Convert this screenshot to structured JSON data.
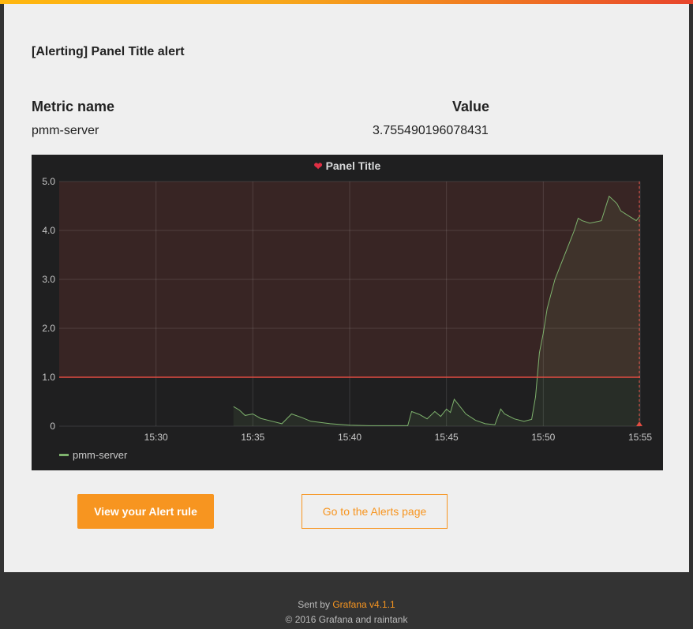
{
  "email": {
    "title": "[Alerting] Panel Title alert",
    "table": {
      "headers": [
        "Metric name",
        "Value"
      ],
      "rows": [
        {
          "metric": "pmm-server",
          "value": "3.755490196078431"
        }
      ]
    }
  },
  "panel": {
    "title": "Panel Title",
    "icon": "broken-heart-icon",
    "legend": "pmm-server"
  },
  "chart_data": {
    "type": "line",
    "title": "Panel Title",
    "x": [
      "15:26",
      "15:30",
      "15:34",
      "15:34.3",
      "15:34.6",
      "15:35",
      "15:35.4",
      "15:36",
      "15:36.5",
      "15:37",
      "15:37.5",
      "15:38",
      "15:39",
      "15:40",
      "15:41",
      "15:42",
      "15:43",
      "15:43.2",
      "15:43.6",
      "15:44",
      "15:44.4",
      "15:44.7",
      "15:45",
      "15:45.2",
      "15:45.4",
      "15:45.6",
      "15:46",
      "15:46.5",
      "15:47",
      "15:47.5",
      "15:47.8",
      "15:48",
      "15:48.5",
      "15:49",
      "15:49.4",
      "15:49.6",
      "15:49.8",
      "15:50",
      "15:50.2",
      "15:50.4",
      "15:50.6",
      "15:50.8",
      "15:51",
      "15:51.2",
      "15:51.4",
      "15:51.6",
      "15:51.8",
      "15:52",
      "15:52.4",
      "15:52.8",
      "15:53",
      "15:53.4",
      "15:53.8",
      "15:54",
      "15:54.4",
      "15:54.8",
      "15:55"
    ],
    "xlabels": [
      "15:30",
      "15:35",
      "15:40",
      "15:45",
      "15:50",
      "15:55"
    ],
    "xlim": [
      "15:25",
      "15:55"
    ],
    "series": [
      {
        "name": "pmm-server",
        "color": "#7eb26d",
        "values": [
          null,
          null,
          0.4,
          0.33,
          0.22,
          0.25,
          0.16,
          0.1,
          0.05,
          0.25,
          0.18,
          0.1,
          0.05,
          0.02,
          0.01,
          0.01,
          0.01,
          0.3,
          0.24,
          0.15,
          0.3,
          0.2,
          0.35,
          0.28,
          0.55,
          0.45,
          0.25,
          0.12,
          0.05,
          0.03,
          0.35,
          0.25,
          0.15,
          0.1,
          0.14,
          0.6,
          1.5,
          1.9,
          2.4,
          2.7,
          3.0,
          3.2,
          3.4,
          3.6,
          3.8,
          4.0,
          4.25,
          4.2,
          4.15,
          4.18,
          4.2,
          4.7,
          4.55,
          4.4,
          4.3,
          4.2,
          4.3
        ]
      }
    ],
    "threshold": 1.0,
    "threshold_color": "#e24d42",
    "ylim": [
      0,
      5.0
    ],
    "yticks": [
      "0",
      "1.0",
      "2.0",
      "3.0",
      "4.0",
      "5.0"
    ],
    "grid": true,
    "legend_position": "bottom-left"
  },
  "buttons": {
    "primary": "View your Alert rule",
    "secondary": "Go to the Alerts page"
  },
  "footer": {
    "sent_by": "Sent by",
    "brand": "Grafana v4.1.1",
    "copyright": "© 2016 Grafana and raintank"
  },
  "colors": {
    "accent": "#f79520",
    "panel_bg": "#1f1f20",
    "alert_region": "#e24d42"
  }
}
